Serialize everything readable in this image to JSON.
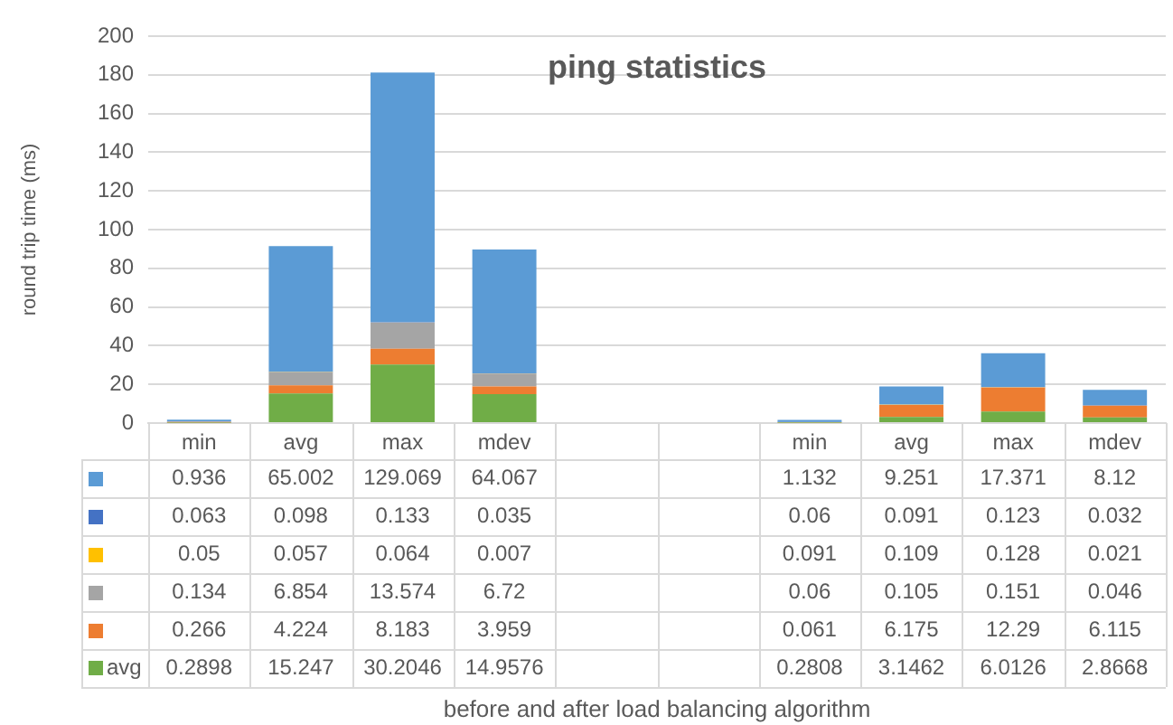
{
  "chart_data": {
    "type": "bar",
    "title": "ping statistics",
    "annotations": [
      "before and after load balancing algorithm"
    ],
    "ylabel": "round trip time (ms)",
    "categories": [
      "min",
      "avg",
      "max",
      "mdev",
      null,
      null,
      "min",
      "avg",
      "max",
      "mdev"
    ],
    "stacked": true,
    "data_labels": true,
    "legend": "bottom",
    "grid": "y",
    "ylim": [
      0,
      200
    ],
    "yticks": [
      0,
      20,
      40,
      60,
      80,
      100,
      120,
      140,
      160,
      180,
      200
    ],
    "series": [
      {
        "name": "avg",
        "color": "#70ad47",
        "values": [
          0.2898,
          15.247,
          30.2046,
          14.9576,
          null,
          null,
          0.2808,
          3.1462,
          6.0126,
          2.8668
        ]
      },
      {
        "color": "#ed7d31",
        "values": [
          0.266,
          4.224,
          8.183,
          3.959,
          null,
          null,
          0.061,
          6.175,
          12.29,
          6.115
        ]
      },
      {
        "color": "#a5a5a5",
        "values": [
          0.134,
          6.854,
          13.574,
          6.72,
          null,
          null,
          0.06,
          0.105,
          0.151,
          0.046
        ]
      },
      {
        "color": "#ffc000",
        "values": [
          0.05,
          0.057,
          0.064,
          0.007,
          null,
          null,
          0.091,
          0.109,
          0.128,
          0.021
        ]
      },
      {
        "color": "#4472c4",
        "values": [
          0.063,
          0.098,
          0.133,
          0.035,
          null,
          null,
          0.06,
          0.091,
          0.123,
          0.032
        ]
      },
      {
        "color": "#5b9bd5",
        "values": [
          0.936,
          65.002,
          129.069,
          64.067,
          null,
          null,
          1.132,
          9.251,
          17.371,
          8.12
        ]
      }
    ]
  }
}
